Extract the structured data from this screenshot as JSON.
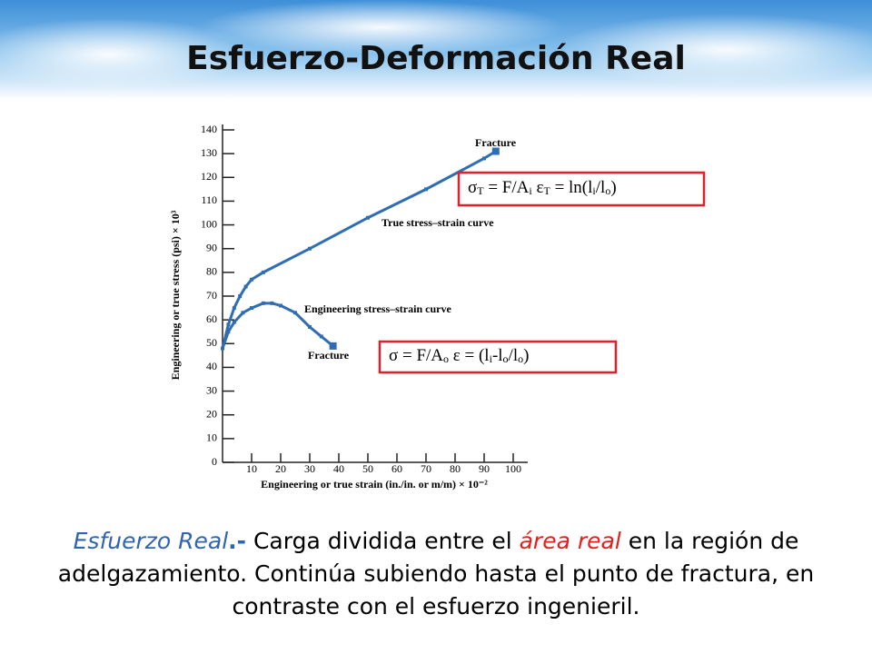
{
  "title": "Esfuerzo-Deformación Real",
  "chart_data": {
    "type": "line",
    "xlabel": "Engineering or true strain (in./in. or m/m) × 10⁻²",
    "ylabel": "Engineering or true stress (psi) × 10³",
    "xlim": [
      0,
      105
    ],
    "xticks": [
      10,
      20,
      30,
      40,
      50,
      60,
      70,
      80,
      90,
      100
    ],
    "ylim": [
      0,
      140
    ],
    "yticks": [
      0,
      10,
      20,
      30,
      40,
      50,
      60,
      70,
      80,
      90,
      100,
      110,
      120,
      130,
      140
    ],
    "series": [
      {
        "name": "True stress–strain curve",
        "color": "#2f6db5",
        "x": [
          0,
          2,
          4,
          6,
          8,
          10,
          14,
          30,
          50,
          70,
          90,
          94
        ],
        "values": [
          48,
          58,
          65,
          70,
          74,
          77,
          80,
          90,
          103,
          115,
          128,
          131
        ]
      },
      {
        "name": "Engineering stress–strain curve",
        "color": "#2f6db5",
        "x": [
          0,
          2,
          4,
          7,
          10,
          14,
          17,
          20,
          25,
          30,
          34,
          38
        ],
        "values": [
          48,
          55,
          59,
          63,
          65,
          67,
          67,
          66,
          63,
          57,
          53,
          49
        ]
      }
    ],
    "annotations": [
      "Fracture",
      "Fracture"
    ],
    "formulas": [
      {
        "parts": [
          "σ",
          "T",
          " = F/A",
          "i",
          "  ε",
          "T",
          " = ln(l",
          "i",
          "/l",
          "o",
          ")"
        ]
      },
      {
        "parts": [
          "σ = F/A",
          "o",
          "  ε = (l",
          "i",
          "-l",
          "o",
          "/l",
          "o",
          ")"
        ]
      }
    ]
  },
  "body": {
    "parts": [
      "Esfuerzo Real",
      ".-",
      " Carga dividida entre el ",
      "área real",
      " en la región de adelgazamiento. Continúa subiendo hasta el punto de fractura, en contraste con el esfuerzo ingenieril."
    ]
  }
}
